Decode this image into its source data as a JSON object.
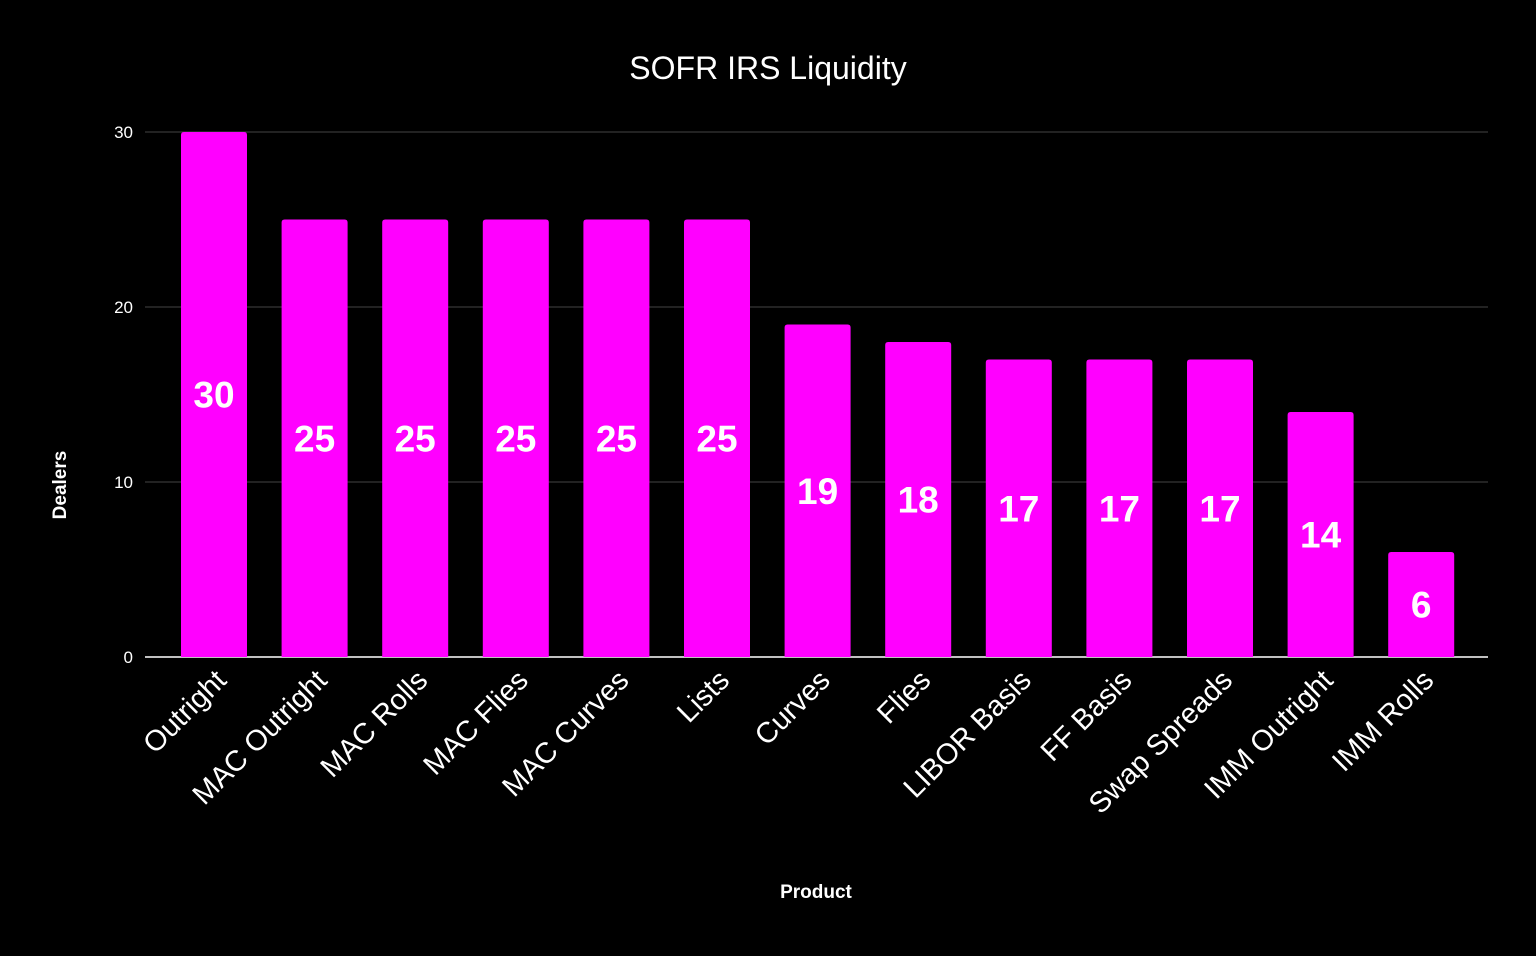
{
  "chart_data": {
    "type": "bar",
    "title": "SOFR IRS Liquidity",
    "xlabel": "Product",
    "ylabel": "Dealers",
    "categories": [
      "Outright",
      "MAC Outright",
      "MAC Rolls",
      "MAC Flies",
      "MAC Curves",
      "Lists",
      "Curves",
      "Flies",
      "LIBOR Basis",
      "FF Basis",
      "Swap Spreads",
      "IMM Outright",
      "IMM Rolls"
    ],
    "values": [
      30,
      25,
      25,
      25,
      25,
      25,
      19,
      18,
      17,
      17,
      17,
      14,
      6
    ],
    "ylim": [
      0,
      30
    ],
    "yticks": [
      "0",
      "10",
      "20",
      "30"
    ],
    "grid": true,
    "legend": "none",
    "data_labels": true,
    "colors": {
      "bar": "#ff00ff",
      "background": "#000000",
      "text": "#ffffff",
      "grid": "#444444"
    }
  }
}
